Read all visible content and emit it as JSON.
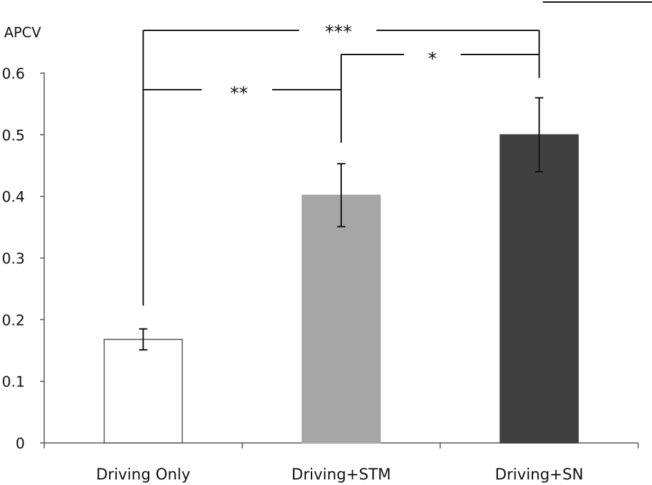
{
  "chart_data": {
    "type": "bar",
    "title": "",
    "xlabel": "",
    "ylabel": "APCV",
    "ylim": [
      0,
      0.6
    ],
    "yticks": [
      "0",
      "0.1",
      "0.2",
      "0.3",
      "0.4",
      "0.5",
      "0.6"
    ],
    "grid": false,
    "categories": [
      "Driving Only",
      "Driving+STM",
      "Driving+SN"
    ],
    "values": [
      0.168,
      0.402,
      0.5
    ],
    "error": [
      0.017,
      0.051,
      0.06
    ],
    "colors": [
      "#ffffff",
      "#a6a6a6",
      "#404040"
    ],
    "significance": [
      {
        "from": 0,
        "to": 2,
        "label": "***"
      },
      {
        "from": 0,
        "to": 1,
        "label": "**"
      },
      {
        "from": 1,
        "to": 2,
        "label": "*"
      }
    ]
  }
}
